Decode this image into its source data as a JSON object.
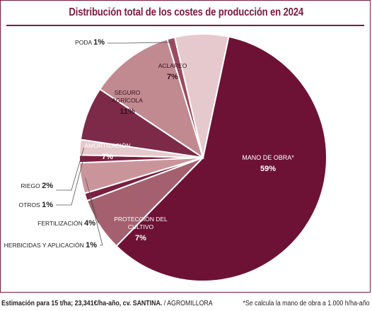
{
  "header": {
    "title": "Distribución total de los costes de producción en 2024"
  },
  "chart_data": {
    "type": "pie",
    "title": "Distribución total de los costes de producción en 2024",
    "unit": "%",
    "slices": [
      {
        "label": "MANO DE OBRA*",
        "value": 59,
        "display": "59%",
        "color": "#6d1235"
      },
      {
        "label": "PROTECCIÓN DEL CULTIVO",
        "value": 7,
        "display": "7%",
        "color": "#a4606e"
      },
      {
        "label": "HERBICIDAS Y APLICACIÓN",
        "value": 1,
        "display": "1%",
        "color": "#7a1f40"
      },
      {
        "label": "FERTILIZACIÓN",
        "value": 4,
        "display": "4%",
        "color": "#c9959b"
      },
      {
        "label": "OTROS",
        "value": 1,
        "display": "1%",
        "color": "#7a1f40"
      },
      {
        "label": "RIEGO",
        "value": 2,
        "display": "2%",
        "color": "#e6c9cc"
      },
      {
        "label": "AMORTIZACIÓN",
        "value": 7,
        "display": "7%",
        "color": "#7c2a47"
      },
      {
        "label": "SEGURO AGRÍCOLA",
        "value": 11,
        "display": "11%",
        "color": "#c08a90"
      },
      {
        "label": "PODA",
        "value": 1,
        "display": "1%",
        "color": "#9b4a60"
      },
      {
        "label": "ACLAREO",
        "value": 7,
        "display": "7%",
        "color": "#e6c9cc"
      }
    ]
  },
  "footer": {
    "source_bold": "Estimación para 15 t/ha; 23,341€/ha-año, cv. SANTINA.",
    "source_rest": " / AGROMILLORA",
    "note": "*Se calcula la mano de obra a 1.000 h/ha-año"
  }
}
